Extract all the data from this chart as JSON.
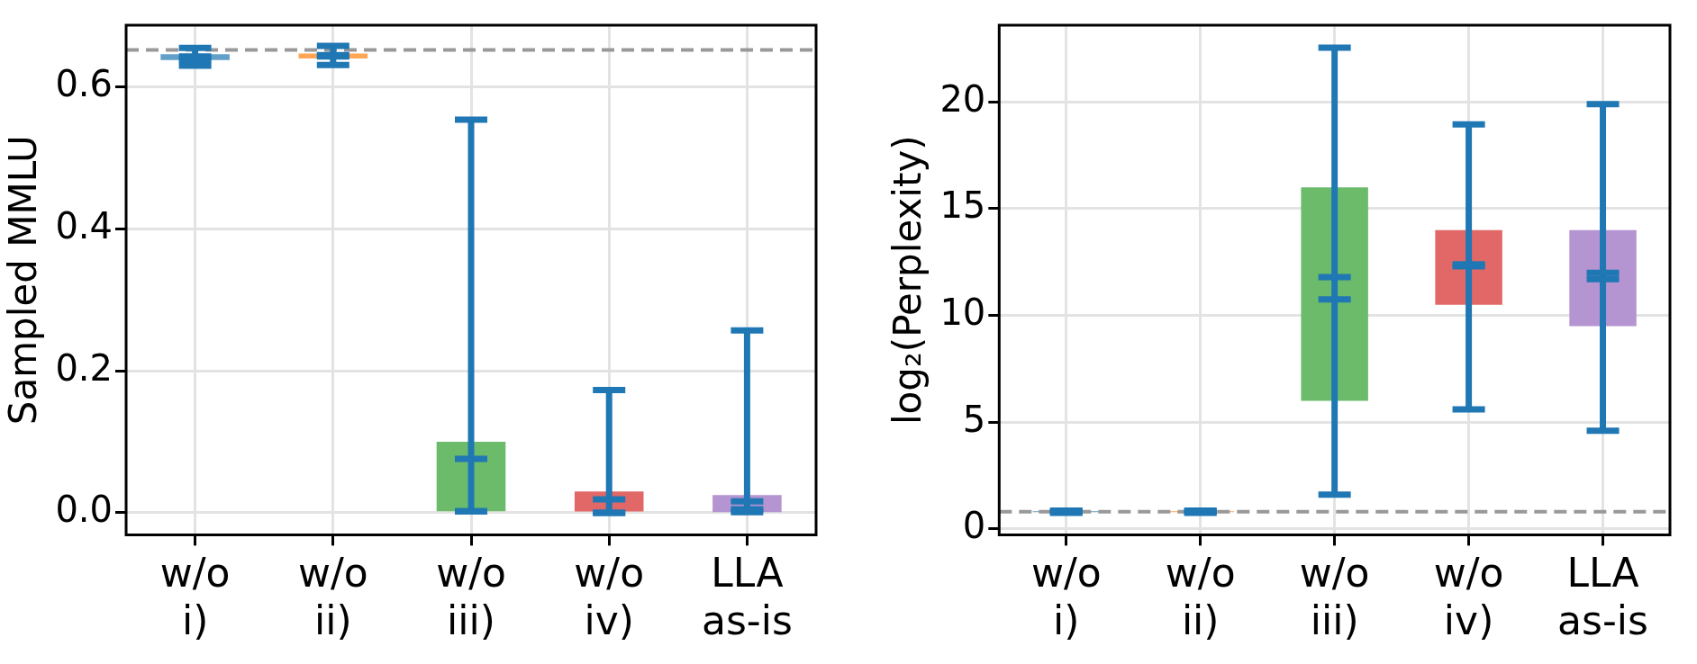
{
  "chart_data": [
    {
      "type": "box",
      "ylabel": "Sampled MMLU",
      "categories": [
        "w/o\ni)",
        "w/o\nii)",
        "w/o\niii)",
        "w/o\niv)",
        "LLA\nas-is"
      ],
      "color": "#1f77b4",
      "colors": [
        "#62a0ca",
        "#ffa556",
        "#6bbb6b",
        "#e26868",
        "#b495d1"
      ],
      "boxes": [
        {
          "low": 0.63,
          "q1": 0.638,
          "median": 0.638,
          "q3": 0.646,
          "high": 0.655,
          "mean": 0.643
        },
        {
          "low": 0.631,
          "q1": 0.64,
          "median": 0.643,
          "q3": 0.647,
          "high": 0.658,
          "mean": 0.645
        },
        {
          "low": 0.002,
          "q1": 0.002,
          "median": 0.002,
          "q3": 0.1,
          "high": 0.554,
          "mean": 0.076
        },
        {
          "low": 0.0,
          "q1": 0.0,
          "median": 0.0,
          "q3": 0.03,
          "high": 0.173,
          "mean": 0.019
        },
        {
          "low": 0.001,
          "q1": 0.001,
          "median": 0.005,
          "q3": 0.025,
          "high": 0.257,
          "mean": 0.016
        }
      ],
      "ylim": [
        -0.031,
        0.687
      ],
      "yticks": [
        {
          "value": 0,
          "label": "0.0"
        },
        {
          "value": 0.2,
          "label": "0.2"
        },
        {
          "value": 0.4,
          "label": "0.4"
        },
        {
          "value": 0.6,
          "label": "0.6"
        }
      ],
      "grid": true,
      "ref_lines": [
        {
          "axis": "y",
          "value": 0.652,
          "color": "#999999",
          "line_style": "dashed"
        }
      ]
    },
    {
      "type": "box",
      "ylabel": "log₂(Perplexity)",
      "categories": [
        "w/o\ni)",
        "w/o\nii)",
        "w/o\niii)",
        "w/o\niv)",
        "LLA\nas-is"
      ],
      "color": "#1f77b4",
      "colors": [
        "#62a0ca",
        "#ffa556",
        "#6bbb6b",
        "#e26868",
        "#b495d1"
      ],
      "boxes": [
        {
          "low": 0.75,
          "q1": 0.78,
          "median": 0.8,
          "q3": 0.82,
          "high": 0.85,
          "mean": 0.8
        },
        {
          "low": 0.75,
          "q1": 0.78,
          "median": 0.8,
          "q3": 0.82,
          "high": 0.85,
          "mean": 0.8
        },
        {
          "low": 1.6,
          "q1": 6,
          "median": 10.75,
          "q3": 16,
          "high": 22.55,
          "mean": 11.8
        },
        {
          "low": 5.6,
          "q1": 10.5,
          "median": 12.3,
          "q3": 14,
          "high": 18.95,
          "mean": 12.4
        },
        {
          "low": 4.6,
          "q1": 9.5,
          "median": 11.7,
          "q3": 14,
          "high": 19.9,
          "mean": 12.0
        }
      ],
      "ylim": [
        -0.28,
        23.6
      ],
      "yticks": [
        0,
        5,
        10,
        15,
        20
      ],
      "grid": true,
      "ref_lines": [
        {
          "axis": "y",
          "value": 0.8,
          "color": "#999999",
          "line_style": "dashed"
        }
      ]
    }
  ]
}
